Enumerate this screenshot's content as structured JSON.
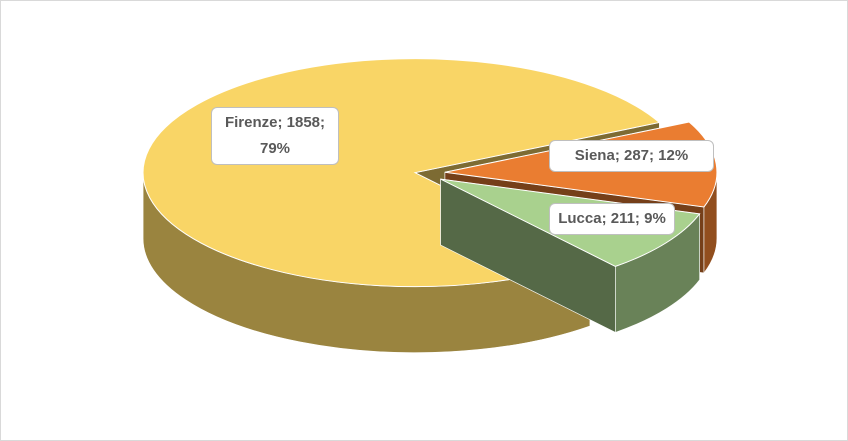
{
  "chart_data": {
    "type": "pie3d",
    "categories": [
      "Firenze",
      "Siena",
      "Lucca"
    ],
    "values": [
      1858,
      287,
      211
    ],
    "value_labels": [
      "Firenze; 1858; 79%",
      "Siena; 287; 12%",
      "Lucca; 211; 9%"
    ],
    "colors": [
      "#f9d566",
      "#ea7d31",
      "#a9d18e"
    ]
  }
}
